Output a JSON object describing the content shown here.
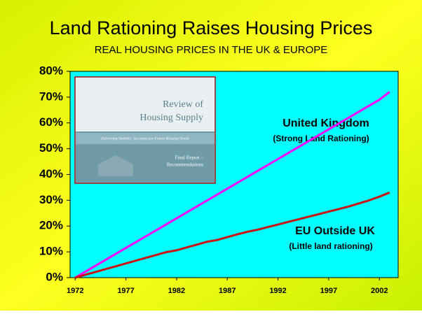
{
  "chart_data": {
    "type": "line",
    "title": "Land Rationing Raises Housing Prices",
    "subtitle": "REAL HOUSING PRICES IN THE UK & EUROPE",
    "x": [
      1972,
      1973,
      1974,
      1975,
      1976,
      1977,
      1978,
      1979,
      1980,
      1981,
      1982,
      1983,
      1984,
      1985,
      1986,
      1987,
      1988,
      1989,
      1990,
      1991,
      1992,
      1993,
      1994,
      1995,
      1996,
      1997,
      1998,
      1999,
      2000,
      2001,
      2002,
      2003
    ],
    "series": [
      {
        "name": "United Kingdom",
        "note": "(Strong Land Rationing)",
        "color": "#ff00ff",
        "values": [
          0,
          2.3,
          4.6,
          6.9,
          9.2,
          11.5,
          13.8,
          16.1,
          18.4,
          20.7,
          23.0,
          25.3,
          27.6,
          29.9,
          32.2,
          34.5,
          36.8,
          39.1,
          41.4,
          43.7,
          46.0,
          48.3,
          50.6,
          52.9,
          55.2,
          57.5,
          59.8,
          62.1,
          64.4,
          66.7,
          69.0,
          72.0
        ]
      },
      {
        "name": "EU Outside UK",
        "note": "(Little land rationing)",
        "color": "#cc1111",
        "values": [
          0,
          1.1,
          2.2,
          3.3,
          4.4,
          5.5,
          6.6,
          7.7,
          8.8,
          9.9,
          10.6,
          11.7,
          12.8,
          13.9,
          14.6,
          15.7,
          16.8,
          17.8,
          18.6,
          19.6,
          20.6,
          21.6,
          22.6,
          23.6,
          24.6,
          25.6,
          26.6,
          27.6,
          28.8,
          30.0,
          31.4,
          33.0
        ]
      }
    ],
    "xlim": [
      1971.5,
      2003.85
    ],
    "xticks": [
      1972,
      1977,
      1982,
      1987,
      1992,
      1997,
      2002
    ],
    "ylim": [
      0,
      80
    ],
    "yticks": [
      {
        "value": 0,
        "label": "0%"
      },
      {
        "value": 10,
        "label": "10%"
      },
      {
        "value": 20,
        "label": "20%"
      },
      {
        "value": 30,
        "label": "30%"
      },
      {
        "value": 40,
        "label": "40%"
      },
      {
        "value": 50,
        "label": "50%"
      },
      {
        "value": 60,
        "label": "60%"
      },
      {
        "value": 70,
        "label": "70%"
      },
      {
        "value": 80,
        "label": "80%"
      }
    ],
    "cover": {
      "title1": "Review of",
      "title2": "Housing Supply",
      "band": "Delivering Stability: Securing our Future Housing Needs",
      "foot1": "Final Report –",
      "foot2": "Recommendations"
    }
  }
}
